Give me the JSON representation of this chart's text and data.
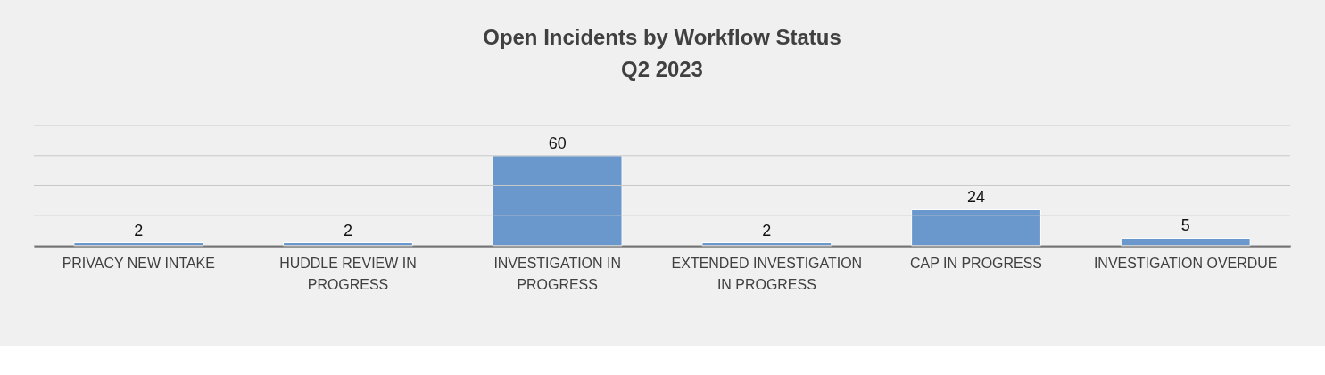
{
  "chart_data": {
    "type": "bar",
    "title": "Open Incidents by Workflow Status\nQ2 2023",
    "categories": [
      "PRIVACY NEW INTAKE",
      "HUDDLE REVIEW IN PROGRESS",
      "INVESTIGATION IN PROGRESS",
      "EXTENDED INVESTIGATION IN PROGRESS",
      "CAP IN PROGRESS",
      "INVESTIGATION OVERDUE"
    ],
    "values": [
      2,
      2,
      60,
      2,
      24,
      5
    ],
    "color": "#6a97cc",
    "ylim": [
      0,
      80
    ],
    "yticks": [
      {
        "value": 0,
        "label": null
      },
      {
        "value": 20,
        "label": null
      },
      {
        "value": 40,
        "label": null
      },
      {
        "value": 60,
        "label": null
      },
      {
        "value": 80,
        "label": null
      }
    ],
    "grid": "y",
    "tick_labels": "x",
    "data_labels": true
  }
}
